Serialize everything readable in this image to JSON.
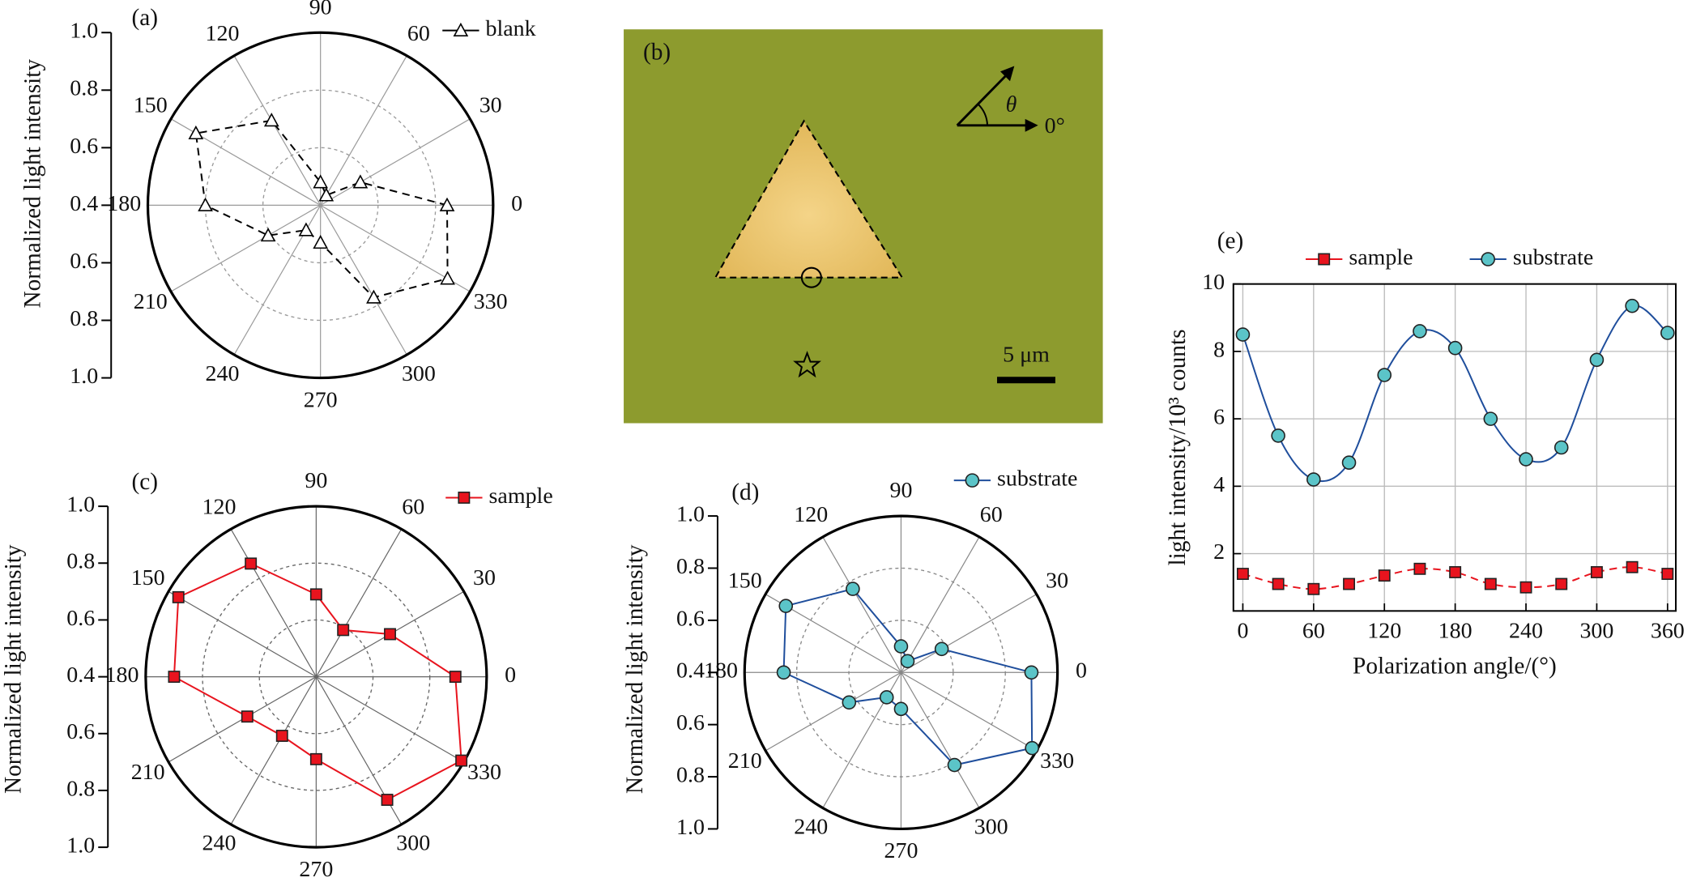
{
  "chart_data": [
    {
      "type": "polar",
      "label": "(a)",
      "ylabel": "Normalized light intensity",
      "x": [
        0,
        30,
        60,
        90,
        120,
        150,
        180,
        210,
        240,
        270,
        300,
        330
      ],
      "series": [
        {
          "name": "blank",
          "color": "#000000",
          "marker": "triangle",
          "marker_color": "#ffffff",
          "line_style": "dashed",
          "values": [
            0.84,
            0.56,
            0.44,
            0.48,
            0.74,
            0.9,
            0.8,
            0.61,
            0.5,
            0.53,
            0.77,
            0.91
          ]
        }
      ],
      "closed": true,
      "rlim": [
        0.4,
        1
      ],
      "rticks": [
        0.4,
        0.6,
        0.8,
        {
          "value": 1,
          "label": "1.0"
        }
      ],
      "xticks": [
        0,
        30,
        60,
        90,
        120,
        150,
        180,
        210,
        240,
        270,
        300,
        330
      ],
      "grid": true,
      "grid_color": "#9a9a9a"
    },
    {
      "type": "polar",
      "label": "(c)",
      "ylabel": "Normalized light intensity",
      "x": [
        0,
        30,
        60,
        90,
        120,
        150,
        180,
        210,
        240,
        270,
        300,
        330
      ],
      "series": [
        {
          "name": "sample",
          "color": "#e8141e",
          "marker": "square",
          "marker_color": "#e8141e",
          "line_style": "solid",
          "values": [
            0.89,
            0.7,
            0.59,
            0.69,
            0.86,
            0.96,
            0.9,
            0.68,
            0.64,
            0.69,
            0.9,
            0.99
          ]
        }
      ],
      "closed": true,
      "rlim": [
        0.4,
        1
      ],
      "rticks": [
        0.4,
        0.6,
        0.8,
        {
          "value": 1,
          "label": "1.0"
        }
      ],
      "xticks": [
        0,
        30,
        60,
        90,
        120,
        150,
        180,
        210,
        240,
        270,
        300,
        330
      ],
      "grid": true,
      "grid_color": "#666666"
    },
    {
      "type": "polar",
      "label": "(d)",
      "ylabel": "Normalized light intensity",
      "x": [
        0,
        30,
        60,
        90,
        120,
        150,
        180,
        210,
        240,
        270,
        300,
        330
      ],
      "series": [
        {
          "name": "substrate",
          "color": "#1f4e9c",
          "marker": "circle",
          "marker_color": "#5bc4c8",
          "line_style": "solid",
          "values": [
            0.9,
            0.58,
            0.45,
            0.5,
            0.77,
            0.91,
            0.85,
            0.63,
            0.51,
            0.54,
            0.81,
            0.98
          ]
        }
      ],
      "closed": true,
      "rlim": [
        0.4,
        1
      ],
      "rticks": [
        0.4,
        0.6,
        0.8,
        {
          "value": 1,
          "label": "1.0"
        }
      ],
      "xticks": [
        0,
        30,
        60,
        90,
        120,
        150,
        180,
        210,
        240,
        270,
        300,
        330
      ],
      "grid": true,
      "grid_color": "#888888"
    },
    {
      "type": "line",
      "label": "(e)",
      "xlabel": "Polarization angle/(°)",
      "ylabel": "light intensity/10³ counts",
      "x": [
        0,
        30,
        60,
        90,
        120,
        150,
        180,
        210,
        240,
        270,
        300,
        330,
        360
      ],
      "series": [
        {
          "name": "sample",
          "color": "#e8141e",
          "marker": "square",
          "marker_color": "#e8141e",
          "line_style": "dashed",
          "smooth": true,
          "values": [
            1.4,
            1.1,
            0.95,
            1.1,
            1.35,
            1.55,
            1.45,
            1.1,
            1.0,
            1.1,
            1.45,
            1.6,
            1.4
          ]
        },
        {
          "name": "substrate",
          "color": "#1f4e9c",
          "marker": "circle",
          "marker_color": "#5bc4c8",
          "line_style": "solid",
          "smooth": true,
          "values": [
            8.5,
            5.5,
            4.2,
            4.7,
            7.3,
            8.6,
            8.1,
            6.0,
            4.8,
            5.15,
            7.75,
            9.35,
            8.55
          ]
        }
      ],
      "xlim": [
        -8,
        367
      ],
      "ylim": [
        0.3,
        10
      ],
      "xticks": [
        0,
        60,
        120,
        180,
        240,
        300,
        360
      ],
      "yticks": [
        2,
        4,
        6,
        8,
        10
      ],
      "grid": true,
      "grid_color": "#bbbbbb"
    }
  ],
  "image_panel": {
    "label": "(b)",
    "angle_symbol": "θ",
    "angle_label": "0°",
    "scale_label": "5 μm"
  }
}
